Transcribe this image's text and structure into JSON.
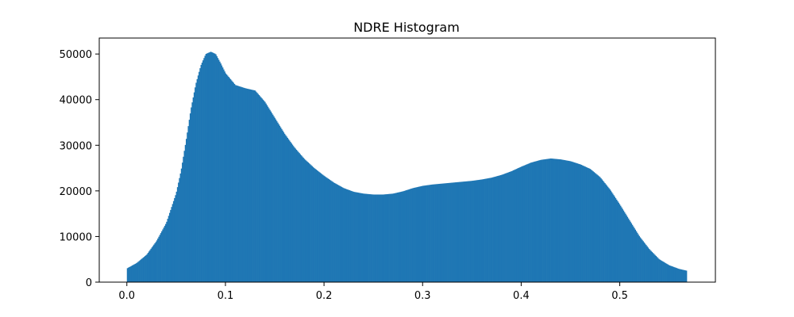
{
  "chart_data": {
    "type": "bar",
    "title": "NDRE Histogram",
    "xlabel": "",
    "ylabel": "",
    "xlim": [
      -0.028,
      0.597
    ],
    "ylim": [
      0,
      53500
    ],
    "x_ticks": [
      0.0,
      0.1,
      0.2,
      0.3,
      0.4,
      0.5
    ],
    "x_tick_labels": [
      "0.0",
      "0.1",
      "0.2",
      "0.3",
      "0.4",
      "0.5"
    ],
    "y_ticks": [
      0,
      10000,
      20000,
      30000,
      40000,
      50000
    ],
    "y_tick_labels": [
      "0",
      "10000",
      "20000",
      "30000",
      "40000",
      "50000"
    ],
    "grid": false,
    "bar_color": "#1f77b4",
    "bin_range": [
      0.0,
      0.568
    ],
    "series": [
      {
        "x": [
          0.0,
          0.01,
          0.02,
          0.03,
          0.04,
          0.05,
          0.055,
          0.06,
          0.065,
          0.07,
          0.075,
          0.08,
          0.085,
          0.09,
          0.095,
          0.1,
          0.11,
          0.12,
          0.13,
          0.14,
          0.15,
          0.16,
          0.17,
          0.18,
          0.19,
          0.2,
          0.21,
          0.22,
          0.23,
          0.24,
          0.25,
          0.26,
          0.27,
          0.28,
          0.29,
          0.3,
          0.31,
          0.32,
          0.33,
          0.34,
          0.35,
          0.36,
          0.37,
          0.38,
          0.39,
          0.4,
          0.41,
          0.42,
          0.43,
          0.44,
          0.45,
          0.46,
          0.47,
          0.48,
          0.49,
          0.5,
          0.51,
          0.52,
          0.53,
          0.54,
          0.55,
          0.56,
          0.568
        ],
        "values": [
          3000,
          4200,
          6000,
          9000,
          13000,
          19500,
          24500,
          31000,
          38000,
          43500,
          47500,
          50000,
          50500,
          50000,
          48000,
          45800,
          43200,
          42500,
          42000,
          39500,
          36000,
          32500,
          29500,
          27000,
          25000,
          23300,
          21800,
          20600,
          19800,
          19400,
          19200,
          19200,
          19400,
          19900,
          20600,
          21100,
          21400,
          21600,
          21800,
          22000,
          22200,
          22500,
          22900,
          23500,
          24300,
          25300,
          26200,
          26800,
          27100,
          26900,
          26500,
          25800,
          24800,
          23000,
          20300,
          17000,
          13500,
          10000,
          7200,
          5000,
          3700,
          2900,
          2500
        ]
      }
    ]
  }
}
